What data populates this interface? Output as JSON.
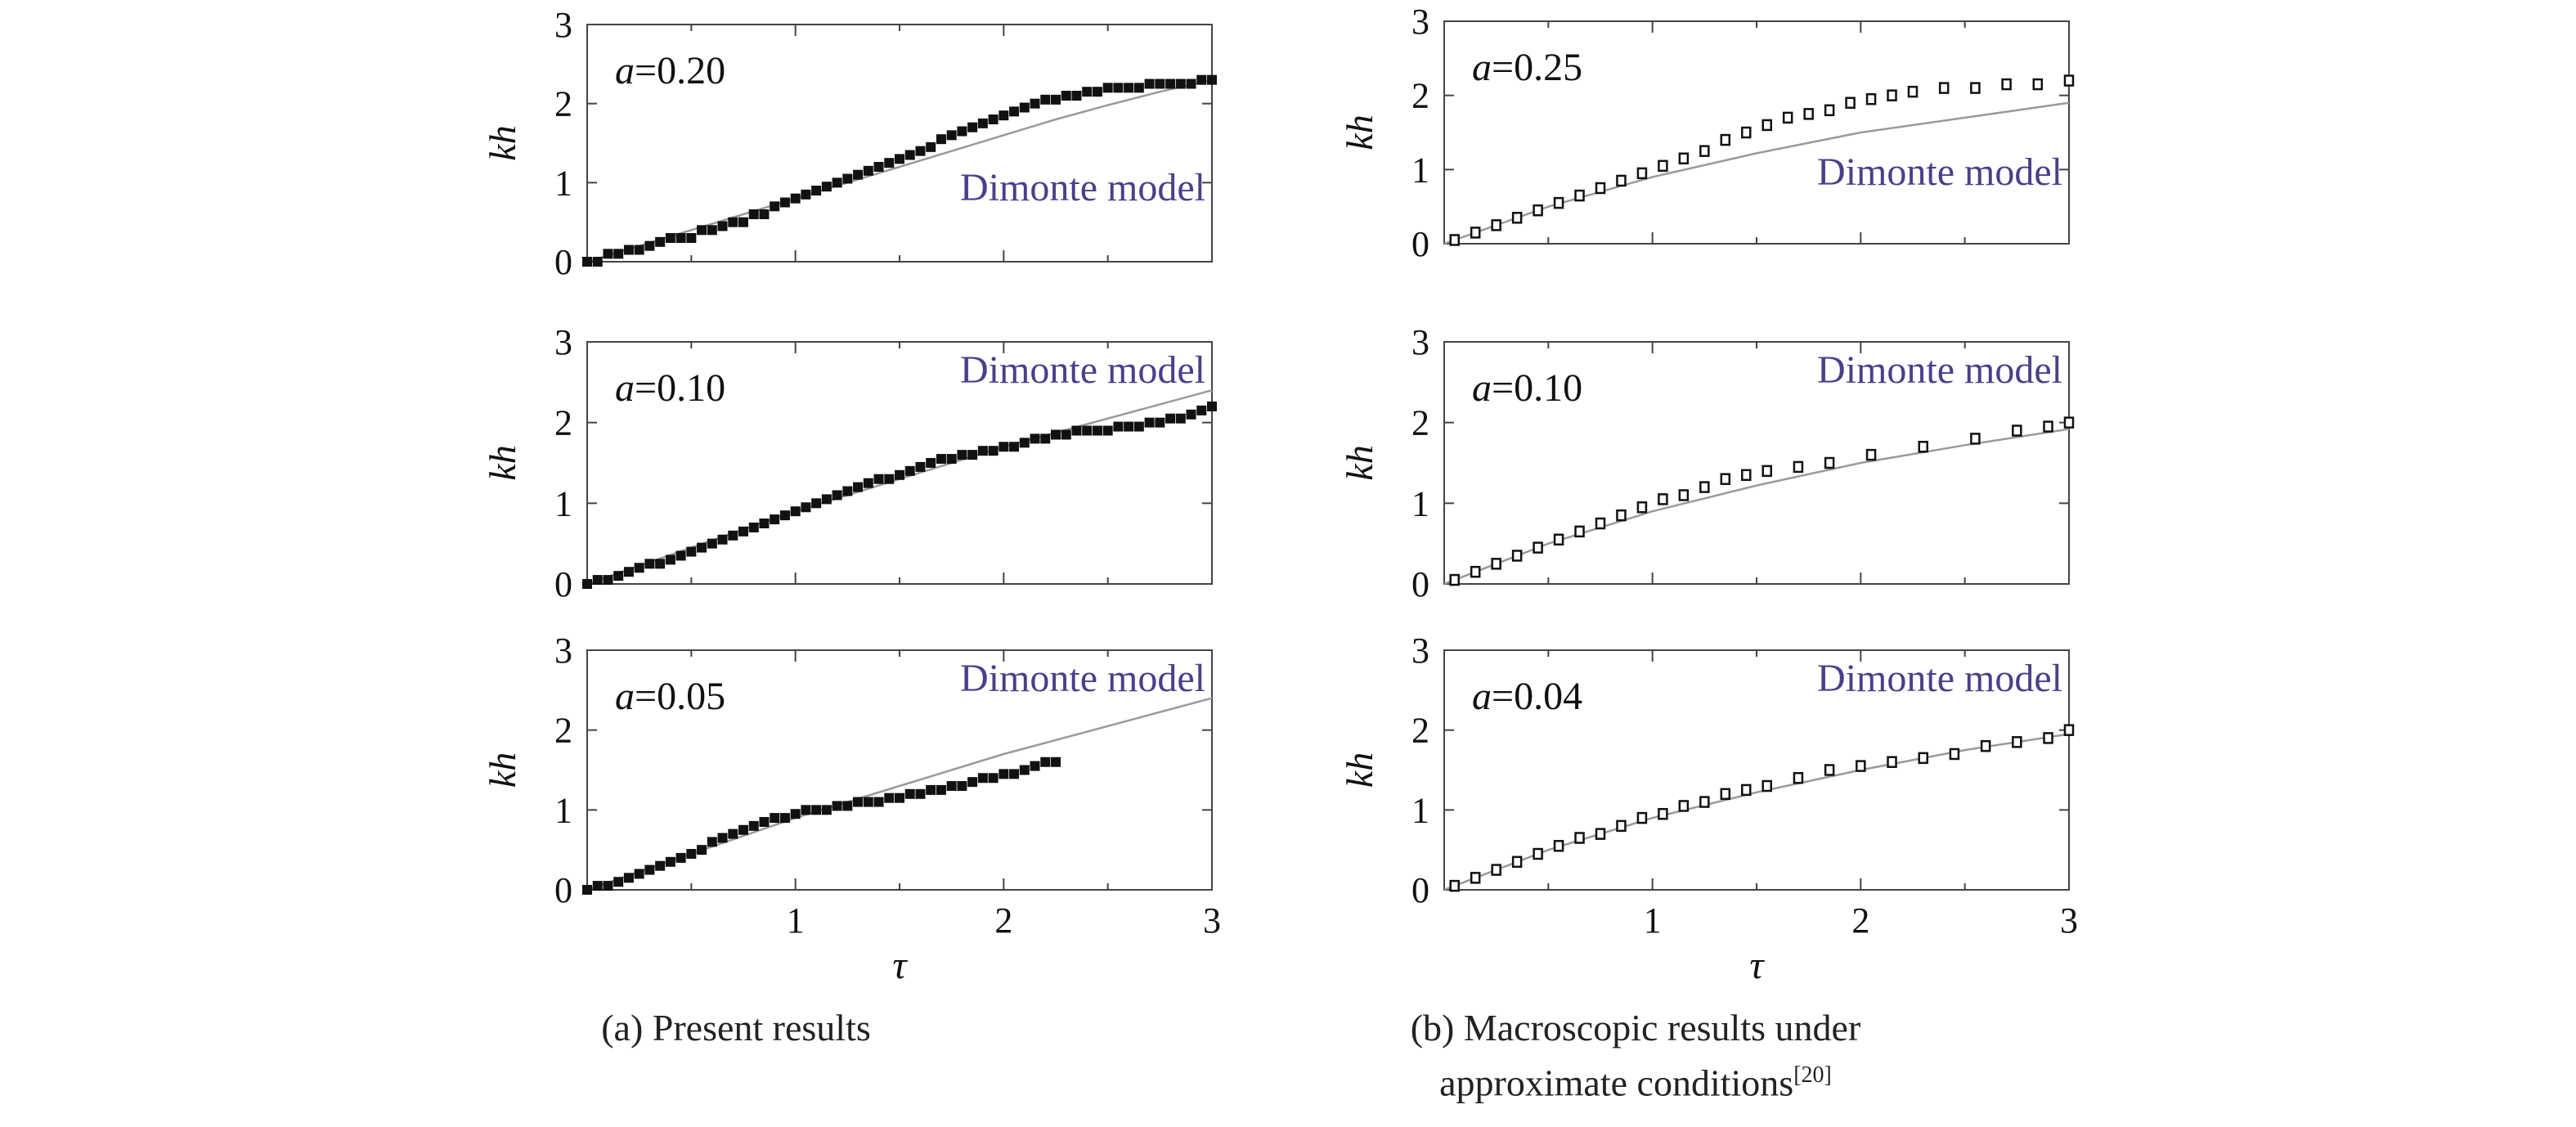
{
  "chart_data": [
    {
      "type": "scatter",
      "panel": "a1",
      "annotation": {
        "var": "a",
        "eq": "=0.20"
      },
      "model_label": "Dimonte model",
      "xlabel": "",
      "ylabel": "kh",
      "xlim": [
        0,
        3
      ],
      "ylim": [
        0,
        3
      ],
      "yticks": [
        "0",
        "1",
        "2",
        "3"
      ],
      "xticks": [],
      "points_x": [
        0.0,
        0.05,
        0.1,
        0.15,
        0.2,
        0.25,
        0.3,
        0.35,
        0.4,
        0.45,
        0.5,
        0.55,
        0.6,
        0.65,
        0.7,
        0.75,
        0.8,
        0.85,
        0.9,
        0.95,
        1.0,
        1.05,
        1.1,
        1.15,
        1.2,
        1.25,
        1.3,
        1.35,
        1.4,
        1.45,
        1.5,
        1.55,
        1.6,
        1.65,
        1.7,
        1.75,
        1.8,
        1.85,
        1.9,
        1.95,
        2.0,
        2.05,
        2.1,
        2.15,
        2.2,
        2.25,
        2.3,
        2.35,
        2.4,
        2.45,
        2.5,
        2.55,
        2.6,
        2.65,
        2.7,
        2.75,
        2.8,
        2.85,
        2.9,
        2.95,
        3.0
      ],
      "points_y": [
        0.0,
        0.0,
        0.1,
        0.1,
        0.15,
        0.15,
        0.2,
        0.25,
        0.3,
        0.3,
        0.3,
        0.4,
        0.4,
        0.45,
        0.5,
        0.5,
        0.6,
        0.6,
        0.7,
        0.75,
        0.8,
        0.85,
        0.9,
        0.95,
        1.0,
        1.05,
        1.1,
        1.15,
        1.2,
        1.25,
        1.3,
        1.35,
        1.4,
        1.45,
        1.55,
        1.6,
        1.65,
        1.7,
        1.75,
        1.8,
        1.85,
        1.9,
        1.95,
        2.0,
        2.05,
        2.05,
        2.1,
        2.1,
        2.15,
        2.15,
        2.2,
        2.2,
        2.2,
        2.2,
        2.25,
        2.25,
        2.25,
        2.25,
        2.25,
        2.3,
        2.3
      ],
      "model_x": [
        0,
        0.25,
        0.5,
        0.75,
        1,
        1.25,
        1.5,
        1.75,
        2,
        2.25,
        2.5,
        2.75,
        3
      ],
      "model_y": [
        0,
        0.2,
        0.4,
        0.6,
        0.8,
        1.0,
        1.2,
        1.4,
        1.6,
        1.8,
        1.98,
        2.15,
        2.3
      ],
      "marker": "filled"
    },
    {
      "type": "scatter",
      "panel": "a2",
      "annotation": {
        "var": "a",
        "eq": "=0.10"
      },
      "model_label": "Dimonte model",
      "xlabel": "",
      "ylabel": "kh",
      "xlim": [
        0,
        3
      ],
      "ylim": [
        0,
        3
      ],
      "yticks": [
        "0",
        "1",
        "2",
        "3"
      ],
      "xticks": [],
      "points_x": [
        0.0,
        0.05,
        0.1,
        0.15,
        0.2,
        0.25,
        0.3,
        0.35,
        0.4,
        0.45,
        0.5,
        0.55,
        0.6,
        0.65,
        0.7,
        0.75,
        0.8,
        0.85,
        0.9,
        0.95,
        1.0,
        1.05,
        1.1,
        1.15,
        1.2,
        1.25,
        1.3,
        1.35,
        1.4,
        1.45,
        1.5,
        1.55,
        1.6,
        1.65,
        1.7,
        1.75,
        1.8,
        1.85,
        1.9,
        1.95,
        2.0,
        2.05,
        2.1,
        2.15,
        2.2,
        2.25,
        2.3,
        2.35,
        2.4,
        2.45,
        2.5,
        2.55,
        2.6,
        2.65,
        2.7,
        2.75,
        2.8,
        2.85,
        2.9,
        2.95,
        3.0
      ],
      "points_y": [
        0.0,
        0.05,
        0.05,
        0.1,
        0.15,
        0.2,
        0.25,
        0.25,
        0.3,
        0.35,
        0.4,
        0.45,
        0.5,
        0.55,
        0.6,
        0.65,
        0.7,
        0.75,
        0.8,
        0.85,
        0.9,
        0.95,
        1.0,
        1.05,
        1.1,
        1.15,
        1.2,
        1.25,
        1.3,
        1.3,
        1.35,
        1.4,
        1.45,
        1.5,
        1.55,
        1.55,
        1.6,
        1.6,
        1.65,
        1.65,
        1.7,
        1.7,
        1.75,
        1.8,
        1.8,
        1.85,
        1.85,
        1.9,
        1.9,
        1.9,
        1.9,
        1.95,
        1.95,
        1.95,
        2.0,
        2.0,
        2.05,
        2.05,
        2.1,
        2.15,
        2.2
      ],
      "model_x": [
        0,
        0.5,
        1,
        1.5,
        2,
        2.5,
        3
      ],
      "model_y": [
        0,
        0.45,
        0.9,
        1.3,
        1.7,
        2.05,
        2.4
      ],
      "marker": "filled"
    },
    {
      "type": "scatter",
      "panel": "a3",
      "annotation": {
        "var": "a",
        "eq": "=0.05"
      },
      "model_label": "Dimonte model",
      "xlabel": "τ",
      "ylabel": "kh",
      "xlim": [
        0,
        3
      ],
      "ylim": [
        0,
        3
      ],
      "yticks": [
        "0",
        "1",
        "2",
        "3"
      ],
      "xticks": [
        "1",
        "2",
        "3"
      ],
      "points_x": [
        0.0,
        0.05,
        0.1,
        0.15,
        0.2,
        0.25,
        0.3,
        0.35,
        0.4,
        0.45,
        0.5,
        0.55,
        0.6,
        0.65,
        0.7,
        0.75,
        0.8,
        0.85,
        0.9,
        0.95,
        1.0,
        1.05,
        1.1,
        1.15,
        1.2,
        1.25,
        1.3,
        1.35,
        1.4,
        1.45,
        1.5,
        1.55,
        1.6,
        1.65,
        1.7,
        1.75,
        1.8,
        1.85,
        1.9,
        1.95,
        2.0,
        2.05,
        2.1,
        2.15,
        2.2,
        2.25
      ],
      "points_y": [
        0.0,
        0.05,
        0.05,
        0.1,
        0.15,
        0.2,
        0.25,
        0.3,
        0.35,
        0.4,
        0.45,
        0.5,
        0.6,
        0.65,
        0.7,
        0.75,
        0.8,
        0.85,
        0.9,
        0.9,
        0.95,
        1.0,
        1.0,
        1.0,
        1.05,
        1.05,
        1.1,
        1.1,
        1.1,
        1.15,
        1.15,
        1.2,
        1.2,
        1.25,
        1.25,
        1.3,
        1.3,
        1.35,
        1.4,
        1.4,
        1.45,
        1.45,
        1.5,
        1.55,
        1.6,
        1.6
      ],
      "model_x": [
        0,
        0.5,
        1,
        1.5,
        2,
        2.5,
        3
      ],
      "model_y": [
        0,
        0.45,
        0.9,
        1.3,
        1.7,
        2.05,
        2.4
      ],
      "marker": "filled"
    },
    {
      "type": "scatter",
      "panel": "b1",
      "annotation": {
        "var": "a",
        "eq": "=0.25"
      },
      "model_label": "Dimonte model",
      "xlabel": "",
      "ylabel": "kh",
      "xlim": [
        0,
        3
      ],
      "ylim": [
        0,
        3
      ],
      "yticks": [
        "0",
        "1",
        "2",
        "3"
      ],
      "xticks": [],
      "points_x": [
        0.05,
        0.15,
        0.25,
        0.35,
        0.45,
        0.55,
        0.65,
        0.75,
        0.85,
        0.95,
        1.05,
        1.15,
        1.25,
        1.35,
        1.45,
        1.55,
        1.65,
        1.75,
        1.85,
        1.95,
        2.05,
        2.15,
        2.25,
        2.4,
        2.55,
        2.7,
        2.85,
        3.0
      ],
      "points_y": [
        0.05,
        0.15,
        0.25,
        0.35,
        0.45,
        0.55,
        0.65,
        0.75,
        0.85,
        0.95,
        1.05,
        1.15,
        1.25,
        1.4,
        1.5,
        1.6,
        1.7,
        1.75,
        1.8,
        1.9,
        1.95,
        2.0,
        2.05,
        2.1,
        2.1,
        2.15,
        2.15,
        2.2
      ],
      "model_x": [
        0,
        0.5,
        1,
        1.5,
        2,
        2.5,
        3
      ],
      "model_y": [
        0,
        0.5,
        0.9,
        1.22,
        1.5,
        1.7,
        1.9
      ],
      "marker": "hollow"
    },
    {
      "type": "scatter",
      "panel": "b2",
      "annotation": {
        "var": "a",
        "eq": "=0.10"
      },
      "model_label": "Dimonte model",
      "xlabel": "",
      "ylabel": "kh",
      "xlim": [
        0,
        3
      ],
      "ylim": [
        0,
        3
      ],
      "yticks": [
        "0",
        "1",
        "2",
        "3"
      ],
      "xticks": [],
      "points_x": [
        0.05,
        0.15,
        0.25,
        0.35,
        0.45,
        0.55,
        0.65,
        0.75,
        0.85,
        0.95,
        1.05,
        1.15,
        1.25,
        1.35,
        1.45,
        1.55,
        1.7,
        1.85,
        2.05,
        2.3,
        2.55,
        2.75,
        2.9,
        3.0
      ],
      "points_y": [
        0.05,
        0.15,
        0.25,
        0.35,
        0.45,
        0.55,
        0.65,
        0.75,
        0.85,
        0.95,
        1.05,
        1.1,
        1.2,
        1.3,
        1.35,
        1.4,
        1.45,
        1.5,
        1.6,
        1.7,
        1.8,
        1.9,
        1.95,
        2.0
      ],
      "model_x": [
        0,
        0.5,
        1,
        1.5,
        2,
        2.5,
        3
      ],
      "model_y": [
        0,
        0.5,
        0.9,
        1.22,
        1.5,
        1.72,
        1.92
      ],
      "marker": "hollow"
    },
    {
      "type": "scatter",
      "panel": "b3",
      "annotation": {
        "var": "a",
        "eq": "=0.04"
      },
      "model_label": "Dimonte model",
      "xlabel": "τ",
      "ylabel": "kh",
      "xlim": [
        0,
        3
      ],
      "ylim": [
        0,
        3
      ],
      "yticks": [
        "0",
        "1",
        "2",
        "3"
      ],
      "xticks": [
        "1",
        "2",
        "3"
      ],
      "points_x": [
        0.05,
        0.15,
        0.25,
        0.35,
        0.45,
        0.55,
        0.65,
        0.75,
        0.85,
        0.95,
        1.05,
        1.15,
        1.25,
        1.35,
        1.45,
        1.55,
        1.7,
        1.85,
        2.0,
        2.15,
        2.3,
        2.45,
        2.6,
        2.75,
        2.9,
        3.0
      ],
      "points_y": [
        0.05,
        0.15,
        0.25,
        0.35,
        0.45,
        0.55,
        0.65,
        0.7,
        0.8,
        0.9,
        0.95,
        1.05,
        1.1,
        1.2,
        1.25,
        1.3,
        1.4,
        1.5,
        1.55,
        1.6,
        1.65,
        1.7,
        1.8,
        1.85,
        1.9,
        2.0
      ],
      "model_x": [
        0,
        0.5,
        1,
        1.5,
        2,
        2.5,
        3
      ],
      "model_y": [
        0,
        0.5,
        0.9,
        1.22,
        1.5,
        1.75,
        1.95
      ],
      "marker": "hollow"
    }
  ],
  "captions": {
    "a": "(a) Present results",
    "b_line1": "(b) Macroscopic results under",
    "b_line2": "approximate conditions",
    "b_ref": "[20]"
  },
  "colors": {
    "model_label": "#4b3f8a",
    "model_line": "#9a9a9a",
    "marker": "#111111",
    "axis": "#444444"
  }
}
